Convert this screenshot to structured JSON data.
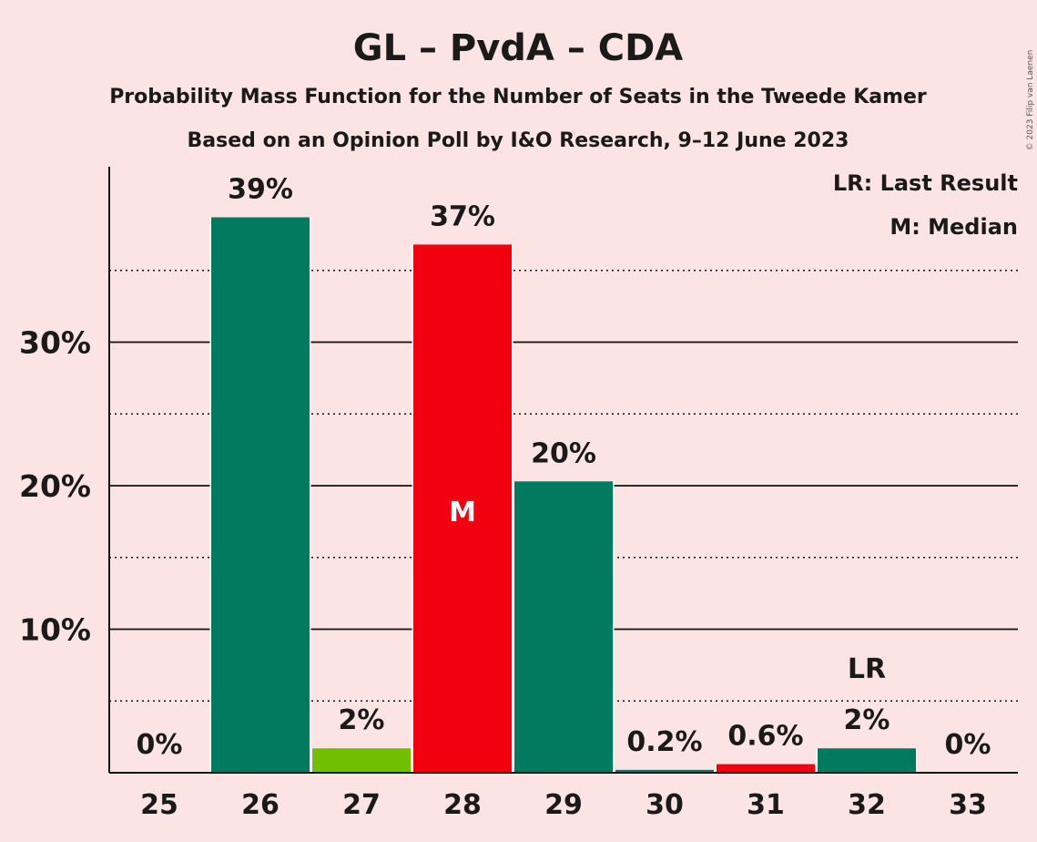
{
  "chart_data": {
    "type": "bar",
    "title": "GL – PvdA – CDA",
    "subtitle": "Probability Mass Function for the Number of Seats in the Tweede Kamer",
    "subtitle2": "Based on an Opinion Poll by I&O Research, 9–12 June 2023",
    "copyright": "© 2023 Filip van Laenen",
    "legend": [
      "LR: Last Result",
      "M: Median"
    ],
    "categories": [
      "25",
      "26",
      "27",
      "28",
      "29",
      "30",
      "31",
      "32",
      "33"
    ],
    "values": [
      0,
      38.7,
      1.7,
      36.8,
      20.3,
      0.2,
      0.6,
      1.7,
      0
    ],
    "labels": [
      "0%",
      "39%",
      "2%",
      "37%",
      "20%",
      "0.2%",
      "0.6%",
      "2%",
      "0%"
    ],
    "colors": [
      "#027a5f",
      "#027a5f",
      "#72bf00",
      "#f2000f",
      "#027a5f",
      "#027a5f",
      "#f2000f",
      "#027a5f",
      "#027a5f"
    ],
    "median_index": 3,
    "median_label": "M",
    "last_result_index": 7,
    "last_result_label": "LR",
    "yticks": [
      10,
      20,
      30
    ],
    "ytick_labels": [
      "10%",
      "20%",
      "30%"
    ],
    "minor_gridlines": [
      5,
      15,
      25,
      35
    ],
    "ylim": [
      0,
      42
    ],
    "grid": true,
    "legend_position": "top-right"
  }
}
